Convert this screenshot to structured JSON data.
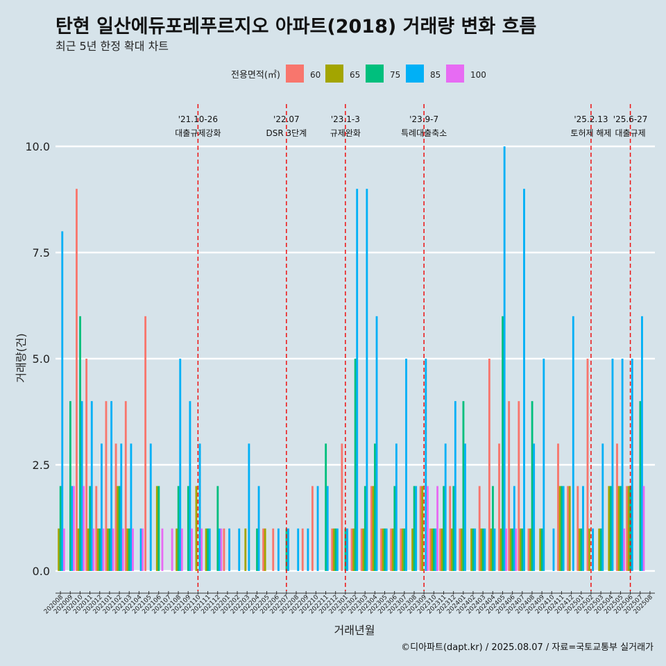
{
  "chart_data": {
    "type": "bar",
    "title": "탄현 일산에듀포레푸르지오 아파트(2018) 거래량 변화 흐름",
    "subtitle": "최근 5년 한정 확대 차트",
    "xlabel": "거래년월",
    "ylabel": "거래량(건)",
    "caption": "©디아파트(dapt.kr) / 2025.08.07 / 자료=국토교통부 실거래가",
    "ylim": [
      0,
      10.5
    ],
    "y_ticks": [
      "0.0",
      "2.5",
      "5.0",
      "7.5",
      "10.0"
    ],
    "y_tick_values": [
      0,
      2.5,
      5,
      7.5,
      10
    ],
    "legend": {
      "title": "전용면적(㎡)",
      "position": "top",
      "entries": [
        {
          "label": "60",
          "color": "#f8766d"
        },
        {
          "label": "65",
          "color": "#a3a500"
        },
        {
          "label": "75",
          "color": "#00bf7d"
        },
        {
          "label": "85",
          "color": "#00b0f6"
        },
        {
          "label": "100",
          "color": "#e76bf3"
        }
      ]
    },
    "categories": [
      "202008",
      "202009",
      "202010",
      "202011",
      "202012",
      "202101",
      "202102",
      "202103",
      "202104",
      "202105",
      "202106",
      "202107",
      "202108",
      "202109",
      "202110",
      "202111",
      "202112",
      "202201",
      "202202",
      "202203",
      "202204",
      "202205",
      "202206",
      "202207",
      "202208",
      "202209",
      "202210",
      "202211",
      "202212",
      "202301",
      "202302",
      "202303",
      "202304",
      "202305",
      "202306",
      "202307",
      "202308",
      "202309",
      "202310",
      "202311",
      "202312",
      "202401",
      "202402",
      "202403",
      "202404",
      "202405",
      "202406",
      "202407",
      "202408",
      "202409",
      "202410",
      "202411",
      "202412",
      "202501",
      "202502",
      "202503",
      "202504",
      "202505",
      "202506",
      "202507",
      "202508"
    ],
    "series": [
      {
        "name": "60",
        "values": [
          0,
          0,
          9,
          5,
          2,
          4,
          3,
          4,
          0,
          6,
          0,
          0,
          0,
          0,
          0,
          0,
          0,
          1,
          0,
          0,
          0,
          1,
          1,
          0,
          0,
          1,
          2,
          0,
          1,
          3,
          1,
          1,
          2,
          1,
          1,
          1,
          0,
          2,
          1,
          1,
          2,
          1,
          0,
          2,
          5,
          3,
          4,
          4,
          1,
          0,
          0,
          3,
          2,
          2,
          5,
          0,
          0,
          3,
          2,
          0,
          0
        ]
      },
      {
        "name": "65",
        "values": [
          1,
          0,
          1,
          1,
          1,
          1,
          2,
          1,
          0,
          0,
          2,
          0,
          1,
          0,
          2,
          1,
          0,
          0,
          0,
          1,
          0,
          1,
          0,
          0,
          0,
          0,
          0,
          0,
          1,
          0,
          1,
          1,
          2,
          1,
          1,
          1,
          1,
          2,
          1,
          1,
          1,
          1,
          1,
          1,
          1,
          1,
          1,
          1,
          1,
          1,
          0,
          2,
          2,
          1,
          1,
          1,
          2,
          2,
          2,
          0,
          0
        ]
      },
      {
        "name": "75",
        "values": [
          2,
          4,
          6,
          2,
          1,
          1,
          2,
          1,
          0,
          0,
          2,
          0,
          2,
          2,
          0,
          1,
          2,
          0,
          0,
          0,
          1,
          0,
          0,
          1,
          0,
          0,
          0,
          3,
          1,
          1,
          5,
          2,
          3,
          1,
          2,
          1,
          2,
          0,
          1,
          2,
          2,
          4,
          1,
          1,
          2,
          6,
          1,
          1,
          4,
          1,
          0,
          2,
          0,
          1,
          0,
          1,
          2,
          2,
          2,
          4,
          0
        ]
      },
      {
        "name": "85",
        "values": [
          8,
          2,
          4,
          4,
          3,
          4,
          3,
          3,
          1,
          3,
          0,
          0,
          5,
          4,
          3,
          1,
          1,
          1,
          1,
          3,
          2,
          0,
          1,
          1,
          1,
          1,
          2,
          2,
          1,
          1,
          9,
          9,
          6,
          1,
          3,
          5,
          2,
          5,
          1,
          3,
          4,
          3,
          1,
          1,
          1,
          10,
          2,
          9,
          3,
          5,
          1,
          2,
          6,
          2,
          1,
          3,
          5,
          5,
          5,
          6,
          0
        ]
      },
      {
        "name": "100",
        "values": [
          1,
          2,
          2,
          1,
          1,
          1,
          1,
          1,
          1,
          0,
          1,
          1,
          1,
          1,
          1,
          0,
          1,
          0,
          0,
          0,
          0,
          0,
          0,
          0,
          0,
          0,
          0,
          0,
          0,
          0,
          0,
          0,
          0,
          0,
          0,
          0,
          0,
          2,
          2,
          0,
          0,
          0,
          0,
          0,
          0,
          1,
          1,
          0,
          0,
          0,
          0,
          0,
          0,
          0,
          0,
          0,
          0,
          1,
          0,
          2,
          0
        ]
      }
    ],
    "annotations": [
      {
        "x": "202110",
        "date": "'21.10-26",
        "label": "대출규제강화"
      },
      {
        "x": "202207",
        "date": "'22.07",
        "label": "DSR 3단계"
      },
      {
        "x": "202301",
        "date": "'23.1-3",
        "label": "규제완화"
      },
      {
        "x": "202309",
        "date": "'23.9-7",
        "label": "특례대출축소"
      },
      {
        "x": "202502",
        "date": "'25.2.13",
        "label": "토허제 해제"
      },
      {
        "x": "202506",
        "date": "'25.6-27",
        "label": "대출규제"
      }
    ]
  }
}
